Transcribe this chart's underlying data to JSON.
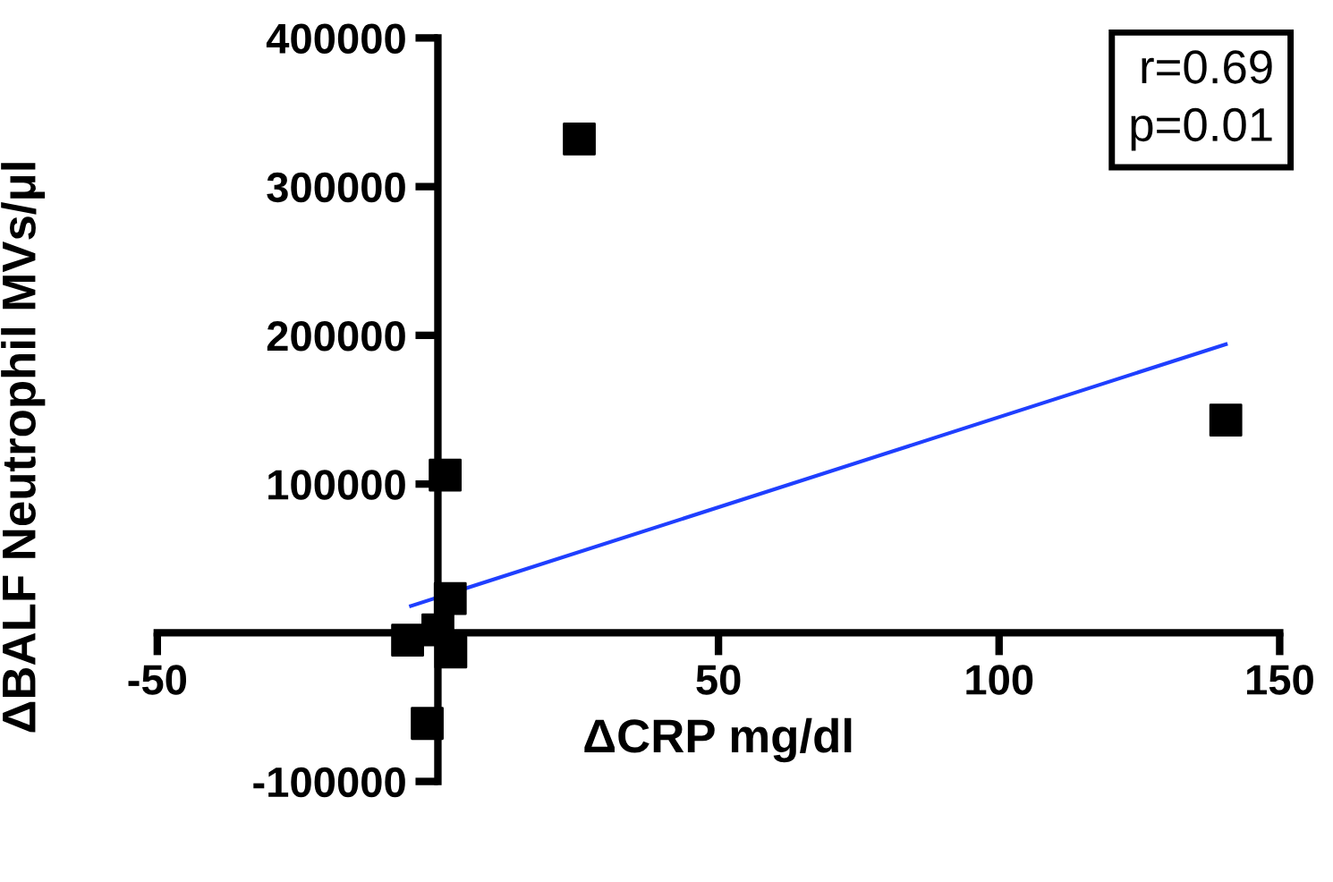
{
  "chart_data": {
    "type": "scatter",
    "xlabel": "ΔCRP mg/dl",
    "ylabel": "ΔBALF Neutrophil MVs/μl",
    "series": [
      {
        "color": "#000000",
        "marker": "square",
        "x": [
          25.2,
          140.4,
          1.3,
          2.2,
          -5.4,
          0,
          2.3,
          -1.9
        ],
        "values": [
          332000,
          143000,
          106000,
          23000,
          -5000,
          2000,
          -13000,
          -61000
        ]
      },
      {
        "type": "line",
        "color": "#1f3fff",
        "marker": "none",
        "line_style": "solid",
        "x": [
          -4.8,
          140.4
        ],
        "values": [
          18000,
          194000
        ]
      }
    ],
    "xlim": [
      -50,
      150
    ],
    "xticks": [
      -50,
      50,
      100,
      150
    ],
    "ylim": [
      -100000,
      400000
    ],
    "yticks": [
      -100000,
      100000,
      200000,
      300000,
      400000
    ],
    "annotations": [
      "r=0.69\np=0.01"
    ],
    "grid": false,
    "legend": false
  }
}
